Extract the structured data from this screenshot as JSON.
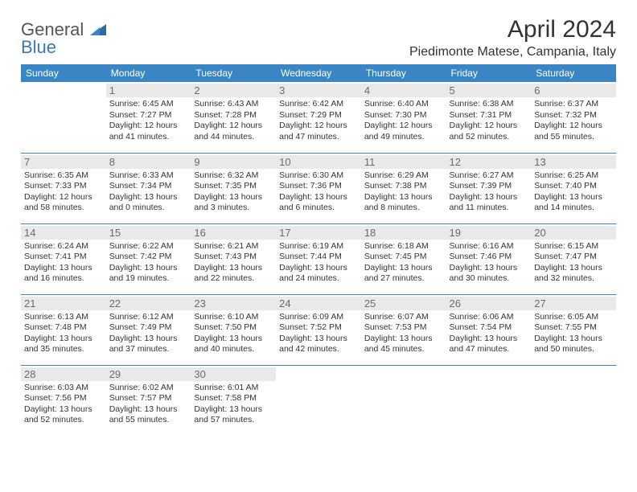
{
  "logo": {
    "line1": "General",
    "line2": "Blue"
  },
  "title": "April 2024",
  "location": "Piedimonte Matese, Campania, Italy",
  "colors": {
    "header_bg": "#3a86c4",
    "header_text": "#ffffff",
    "daynum_bg": "#e9e9e9",
    "daynum_text": "#6b6b6b",
    "body_text": "#333333",
    "rule": "#3a86c4",
    "logo_accent": "#3a7ab8"
  },
  "typography": {
    "title_fontsize": 30,
    "location_fontsize": 16,
    "weekday_fontsize": 12,
    "daynum_fontsize": 13,
    "cell_fontsize": 10.5
  },
  "weekdays": [
    "Sunday",
    "Monday",
    "Tuesday",
    "Wednesday",
    "Thursday",
    "Friday",
    "Saturday"
  ],
  "weeks": [
    [
      null,
      {
        "n": "1",
        "sr": "6:45 AM",
        "ss": "7:27 PM",
        "dl": "12 hours and 41 minutes."
      },
      {
        "n": "2",
        "sr": "6:43 AM",
        "ss": "7:28 PM",
        "dl": "12 hours and 44 minutes."
      },
      {
        "n": "3",
        "sr": "6:42 AM",
        "ss": "7:29 PM",
        "dl": "12 hours and 47 minutes."
      },
      {
        "n": "4",
        "sr": "6:40 AM",
        "ss": "7:30 PM",
        "dl": "12 hours and 49 minutes."
      },
      {
        "n": "5",
        "sr": "6:38 AM",
        "ss": "7:31 PM",
        "dl": "12 hours and 52 minutes."
      },
      {
        "n": "6",
        "sr": "6:37 AM",
        "ss": "7:32 PM",
        "dl": "12 hours and 55 minutes."
      }
    ],
    [
      {
        "n": "7",
        "sr": "6:35 AM",
        "ss": "7:33 PM",
        "dl": "12 hours and 58 minutes."
      },
      {
        "n": "8",
        "sr": "6:33 AM",
        "ss": "7:34 PM",
        "dl": "13 hours and 0 minutes."
      },
      {
        "n": "9",
        "sr": "6:32 AM",
        "ss": "7:35 PM",
        "dl": "13 hours and 3 minutes."
      },
      {
        "n": "10",
        "sr": "6:30 AM",
        "ss": "7:36 PM",
        "dl": "13 hours and 6 minutes."
      },
      {
        "n": "11",
        "sr": "6:29 AM",
        "ss": "7:38 PM",
        "dl": "13 hours and 8 minutes."
      },
      {
        "n": "12",
        "sr": "6:27 AM",
        "ss": "7:39 PM",
        "dl": "13 hours and 11 minutes."
      },
      {
        "n": "13",
        "sr": "6:25 AM",
        "ss": "7:40 PM",
        "dl": "13 hours and 14 minutes."
      }
    ],
    [
      {
        "n": "14",
        "sr": "6:24 AM",
        "ss": "7:41 PM",
        "dl": "13 hours and 16 minutes."
      },
      {
        "n": "15",
        "sr": "6:22 AM",
        "ss": "7:42 PM",
        "dl": "13 hours and 19 minutes."
      },
      {
        "n": "16",
        "sr": "6:21 AM",
        "ss": "7:43 PM",
        "dl": "13 hours and 22 minutes."
      },
      {
        "n": "17",
        "sr": "6:19 AM",
        "ss": "7:44 PM",
        "dl": "13 hours and 24 minutes."
      },
      {
        "n": "18",
        "sr": "6:18 AM",
        "ss": "7:45 PM",
        "dl": "13 hours and 27 minutes."
      },
      {
        "n": "19",
        "sr": "6:16 AM",
        "ss": "7:46 PM",
        "dl": "13 hours and 30 minutes."
      },
      {
        "n": "20",
        "sr": "6:15 AM",
        "ss": "7:47 PM",
        "dl": "13 hours and 32 minutes."
      }
    ],
    [
      {
        "n": "21",
        "sr": "6:13 AM",
        "ss": "7:48 PM",
        "dl": "13 hours and 35 minutes."
      },
      {
        "n": "22",
        "sr": "6:12 AM",
        "ss": "7:49 PM",
        "dl": "13 hours and 37 minutes."
      },
      {
        "n": "23",
        "sr": "6:10 AM",
        "ss": "7:50 PM",
        "dl": "13 hours and 40 minutes."
      },
      {
        "n": "24",
        "sr": "6:09 AM",
        "ss": "7:52 PM",
        "dl": "13 hours and 42 minutes."
      },
      {
        "n": "25",
        "sr": "6:07 AM",
        "ss": "7:53 PM",
        "dl": "13 hours and 45 minutes."
      },
      {
        "n": "26",
        "sr": "6:06 AM",
        "ss": "7:54 PM",
        "dl": "13 hours and 47 minutes."
      },
      {
        "n": "27",
        "sr": "6:05 AM",
        "ss": "7:55 PM",
        "dl": "13 hours and 50 minutes."
      }
    ],
    [
      {
        "n": "28",
        "sr": "6:03 AM",
        "ss": "7:56 PM",
        "dl": "13 hours and 52 minutes."
      },
      {
        "n": "29",
        "sr": "6:02 AM",
        "ss": "7:57 PM",
        "dl": "13 hours and 55 minutes."
      },
      {
        "n": "30",
        "sr": "6:01 AM",
        "ss": "7:58 PM",
        "dl": "13 hours and 57 minutes."
      },
      null,
      null,
      null,
      null
    ]
  ],
  "labels": {
    "sunrise": "Sunrise:",
    "sunset": "Sunset:",
    "daylight": "Daylight:"
  }
}
